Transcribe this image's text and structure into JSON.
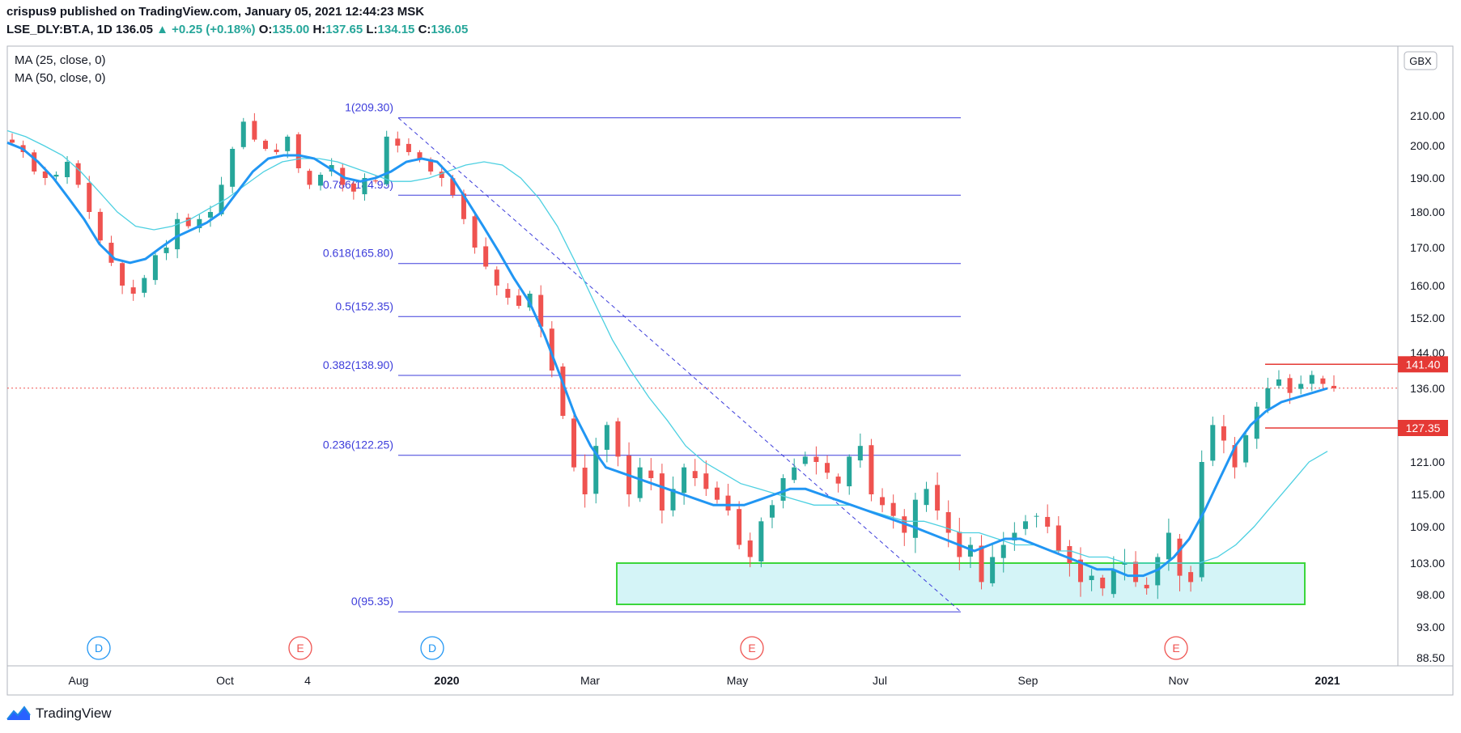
{
  "header": {
    "publisher_line": "crispus9 published on TradingView.com, January 05, 2021 12:44:23 MSK",
    "symbol": "LSE_DLY:BT.A, 1D",
    "last": "136.05",
    "change": "+0.25 (+0.18%)",
    "o_label": "O:",
    "o_val": "135.00",
    "h_label": "H:",
    "h_val": "137.65",
    "l_label": "L:",
    "l_val": "134.15",
    "c_label": "C:",
    "c_val": "136.05"
  },
  "indicators": [
    "MA (25, close, 0)",
    "MA (50, close, 0)"
  ],
  "currency": "GBX",
  "footer": {
    "brand": "TradingView"
  },
  "colors": {
    "up": "#26a69a",
    "down": "#ef5350",
    "ma25": "#2196f3",
    "ma50": "#4dd0e1",
    "fib": "#3d3ddb",
    "zone_fill": "#d4f4f7",
    "zone_stroke": "#3cd63c",
    "level": "#e53935"
  },
  "chart_data": {
    "type": "candlestick",
    "y_axis_ticks": [
      "210.00",
      "200.00",
      "190.00",
      "180.00",
      "170.00",
      "160.00",
      "152.00",
      "144.00",
      "136.00",
      "127.35",
      "121.00",
      "115.00",
      "109.00",
      "103.00",
      "98.00",
      "93.00",
      "88.50"
    ],
    "x_axis_ticks": [
      "Aug",
      "Oct",
      "4",
      "2020",
      "Mar",
      "May",
      "Jul",
      "Sep",
      "Nov",
      "2021"
    ],
    "price_labels": [
      {
        "label": "141.40",
        "value": 141.4
      },
      {
        "label": "127.35",
        "value": 127.35
      }
    ],
    "fib_levels": [
      {
        "label": "1(209.30)",
        "value": 209.3
      },
      {
        "label": "0.786(184.95)",
        "value": 184.95
      },
      {
        "label": "0.618(165.80)",
        "value": 165.8
      },
      {
        "label": "0.5(152.35)",
        "value": 152.35
      },
      {
        "label": "0.382(138.90)",
        "value": 138.9
      },
      {
        "label": "0.236(122.25)",
        "value": 122.25
      },
      {
        "label": "0(95.35)",
        "value": 95.35
      }
    ],
    "demand_zone": {
      "low": 96.5,
      "high": 103.0
    },
    "event_markers": [
      {
        "label": "D",
        "type": "dividend"
      },
      {
        "label": "E",
        "type": "earnings"
      },
      {
        "label": "D",
        "type": "dividend"
      },
      {
        "label": "E",
        "type": "earnings"
      },
      {
        "label": "E",
        "type": "earnings"
      }
    ],
    "close_series": [
      201,
      198,
      192,
      190,
      191,
      195,
      188,
      180,
      172,
      166,
      160,
      158,
      162,
      168,
      170,
      178,
      176,
      178,
      180,
      188,
      199,
      208,
      202,
      199,
      198,
      203,
      193,
      188,
      191,
      194,
      188,
      186,
      190,
      189,
      203,
      200,
      198,
      196,
      192,
      190,
      185,
      178,
      170,
      165,
      160,
      157,
      155,
      158,
      150,
      140,
      130,
      120,
      115,
      124,
      128,
      122,
      115,
      120,
      118,
      112,
      116,
      120,
      118,
      116,
      114,
      112,
      106,
      104,
      110,
      113,
      118,
      120,
      122,
      121,
      119,
      117,
      122,
      124,
      115,
      113,
      111,
      108,
      114,
      116,
      112,
      108,
      104,
      106,
      100,
      104,
      106,
      108,
      110,
      111,
      109,
      105,
      103,
      100,
      101,
      99,
      102,
      103,
      100,
      99,
      104,
      108,
      101,
      100,
      121,
      128,
      125,
      120,
      126,
      132,
      136,
      138,
      135,
      137,
      139,
      137,
      136
    ],
    "ma25_series": [
      201,
      199,
      195,
      190,
      184,
      178,
      171,
      167,
      166,
      167,
      170,
      173,
      175,
      177,
      180,
      186,
      192,
      196,
      197,
      197,
      196,
      193,
      190,
      189,
      190,
      192,
      195,
      196,
      195,
      190,
      183,
      176,
      169,
      162,
      156,
      148,
      139,
      130,
      124,
      120,
      119,
      118,
      117,
      116,
      115,
      114,
      113,
      113,
      113,
      114,
      115,
      116,
      116,
      115,
      114,
      113,
      112,
      111,
      110,
      109,
      108,
      107,
      106,
      105,
      106,
      107,
      107,
      106,
      105,
      104,
      103,
      102,
      102,
      101,
      101,
      102,
      104,
      107,
      112,
      118,
      124,
      128,
      131,
      133,
      134,
      135,
      136
    ],
    "ma50_series": [
      205,
      203,
      200,
      197,
      192,
      186,
      180,
      176,
      175,
      176,
      178,
      181,
      184,
      188,
      192,
      195,
      196,
      196,
      195,
      193,
      191,
      189,
      189,
      190,
      192,
      194,
      195,
      194,
      190,
      184,
      176,
      166,
      156,
      147,
      140,
      134,
      129,
      124,
      121,
      119,
      117,
      116,
      115,
      114,
      113,
      113,
      113,
      112,
      111,
      110,
      110,
      109,
      108,
      108,
      107,
      106,
      106,
      105,
      105,
      104,
      104,
      103,
      103,
      103,
      103,
      103,
      104,
      106,
      109,
      113,
      117,
      121,
      123
    ]
  }
}
